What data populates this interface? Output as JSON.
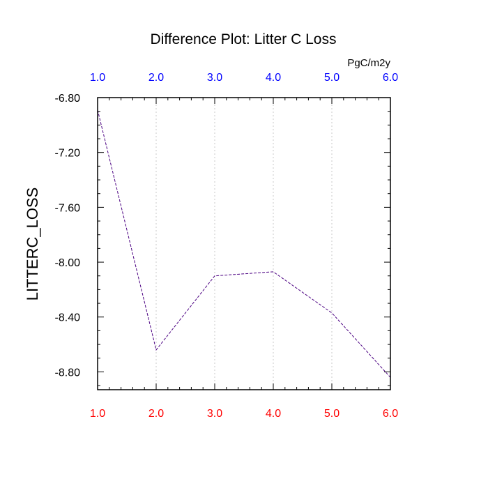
{
  "chart_data": {
    "type": "line",
    "title": "Difference Plot: Litter C Loss",
    "units": "PgC/m2y",
    "ylabel": "LITTERC_LOSS",
    "xlabel": "",
    "x": [
      1,
      2,
      3,
      4,
      5,
      6
    ],
    "series": [
      {
        "values": [
          -6.89,
          -8.64,
          -8.1,
          -8.07,
          -8.37,
          -8.84
        ],
        "color": "#4b0082"
      }
    ],
    "xlim": [
      1,
      6
    ],
    "ylim": [
      -8.93,
      -6.8
    ],
    "x_ticks": [
      1,
      2,
      3,
      4,
      5,
      6
    ],
    "x_tick_labels": [
      "1.0",
      "2.0",
      "3.0",
      "4.0",
      "5.0",
      "6.0"
    ],
    "y_ticks": [
      -6.8,
      -7.2,
      -7.6,
      -8.0,
      -8.4,
      -8.8
    ],
    "y_tick_labels": [
      "-6.80",
      "-7.20",
      "-7.60",
      "-8.00",
      "-8.40",
      "-8.80"
    ],
    "bottom_tick_color": "#ff0000",
    "top_tick_color": "#0000ff",
    "x_gridlines": true,
    "line_style": "dashed"
  }
}
